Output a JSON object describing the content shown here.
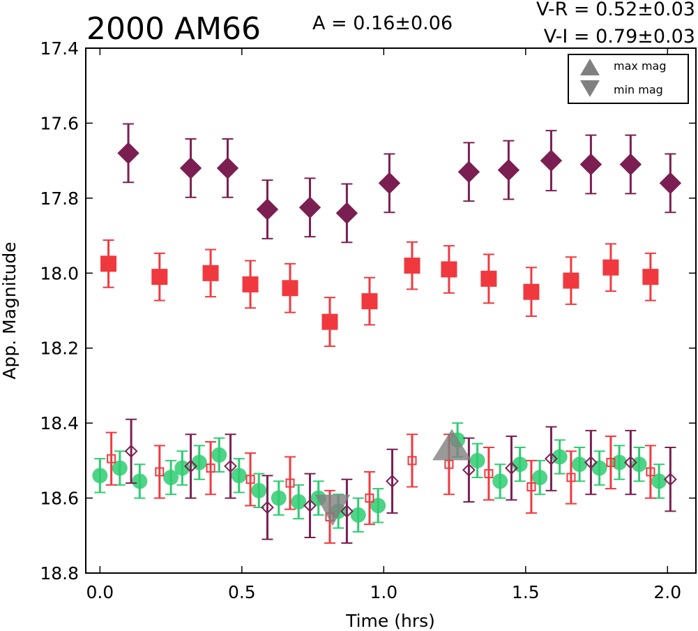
{
  "chart_data": {
    "type": "scatter",
    "title": "2000 AM66",
    "annotations": [
      "A  = 0.16±0.06",
      "V-R = 0.52±0.03",
      "V-I  = 0.79±0.03"
    ],
    "xlabel": "Time (hrs)",
    "ylabel": "App. Magnitude",
    "xlim": [
      -0.05,
      2.1
    ],
    "ylim": [
      18.8,
      17.4
    ],
    "y_inverted": true,
    "grid": false,
    "legend_position": "top-right",
    "x_ticks": [
      0.0,
      0.5,
      1.0,
      1.5,
      2.0
    ],
    "x_tick_labels": [
      "0.0",
      "0.5",
      "1.0",
      "1.5",
      "2.0"
    ],
    "y_ticks": [
      17.4,
      17.6,
      17.8,
      18.0,
      18.2,
      18.4,
      18.6,
      18.8
    ],
    "y_tick_labels": [
      "17.4",
      "17.6",
      "17.8",
      "18.0",
      "18.2",
      "18.4",
      "18.6",
      "18.8"
    ],
    "legend": [
      {
        "label": "max mag",
        "marker": "triangle-up",
        "color": "#808080"
      },
      {
        "label": "min mag",
        "marker": "triangle-down",
        "color": "#808080"
      }
    ],
    "series": [
      {
        "marker": "diamond-filled",
        "color": "#7b1f52",
        "x": [
          0.1,
          0.32,
          0.45,
          0.59,
          0.74,
          0.87,
          1.02,
          1.3,
          1.44,
          1.59,
          1.73,
          1.87,
          2.01
        ],
        "y": [
          17.68,
          17.72,
          17.72,
          17.83,
          17.825,
          17.84,
          17.76,
          17.73,
          17.725,
          17.7,
          17.71,
          17.71,
          17.76
        ],
        "err": [
          0.078,
          0.078,
          0.078,
          0.078,
          0.078,
          0.078,
          0.078,
          0.078,
          0.078,
          0.08,
          0.078,
          0.078,
          0.078
        ]
      },
      {
        "marker": "square-filled",
        "color": "#f0393f",
        "x": [
          0.03,
          0.21,
          0.39,
          0.53,
          0.67,
          0.81,
          0.95,
          1.1,
          1.23,
          1.37,
          1.52,
          1.66,
          1.8,
          1.94
        ],
        "y": [
          17.975,
          18.01,
          18.0,
          18.03,
          18.04,
          18.13,
          18.075,
          17.98,
          17.99,
          18.015,
          18.05,
          18.02,
          17.985,
          18.01
        ],
        "err": [
          0.063,
          0.063,
          0.063,
          0.063,
          0.065,
          0.065,
          0.063,
          0.063,
          0.063,
          0.065,
          0.065,
          0.063,
          0.063,
          0.063
        ]
      },
      {
        "marker": "circle-filled",
        "color": "#2ecc71",
        "x": [
          0.0,
          0.07,
          0.14,
          0.25,
          0.29,
          0.35,
          0.42,
          0.49,
          0.56,
          0.63,
          0.7,
          0.77,
          0.84,
          0.91,
          0.98,
          1.26,
          1.33,
          1.41,
          1.48,
          1.55,
          1.62,
          1.69,
          1.76,
          1.83,
          1.9,
          1.97
        ],
        "y": [
          18.54,
          18.52,
          18.555,
          18.545,
          18.52,
          18.505,
          18.485,
          18.54,
          18.58,
          18.6,
          18.61,
          18.6,
          18.635,
          18.645,
          18.62,
          18.445,
          18.5,
          18.555,
          18.51,
          18.545,
          18.49,
          18.51,
          18.52,
          18.505,
          18.51,
          18.555
        ],
        "err": [
          0.045,
          0.045,
          0.045,
          0.045,
          0.045,
          0.045,
          0.045,
          0.045,
          0.045,
          0.045,
          0.045,
          0.045,
          0.045,
          0.045,
          0.045,
          0.045,
          0.045,
          0.045,
          0.045,
          0.045,
          0.045,
          0.045,
          0.045,
          0.045,
          0.045,
          0.045
        ]
      },
      {
        "marker": "square-open",
        "color": "#f0393f",
        "x": [
          0.04,
          0.21,
          0.39,
          0.53,
          0.67,
          0.81,
          0.95,
          1.1,
          1.23,
          1.37,
          1.52,
          1.66,
          1.8,
          1.94
        ],
        "y": [
          18.495,
          18.53,
          18.52,
          18.55,
          18.56,
          18.65,
          18.6,
          18.5,
          18.51,
          18.535,
          18.57,
          18.545,
          18.505,
          18.53
        ],
        "err": [
          0.07,
          0.07,
          0.07,
          0.07,
          0.07,
          0.07,
          0.07,
          0.07,
          0.08,
          0.07,
          0.07,
          0.07,
          0.07,
          0.07
        ]
      },
      {
        "marker": "diamond-open",
        "color": "#7b1f52",
        "x": [
          0.11,
          0.32,
          0.46,
          0.59,
          0.74,
          0.87,
          1.03,
          1.3,
          1.45,
          1.59,
          1.73,
          1.87,
          2.01
        ],
        "y": [
          18.475,
          18.515,
          18.515,
          18.625,
          18.62,
          18.635,
          18.555,
          18.525,
          18.52,
          18.495,
          18.505,
          18.505,
          18.55
        ],
        "err": [
          0.085,
          0.085,
          0.085,
          0.085,
          0.085,
          0.085,
          0.085,
          0.085,
          0.085,
          0.085,
          0.085,
          0.085,
          0.085
        ]
      },
      {
        "marker": "triangle-up",
        "color": "#808080",
        "x": [
          1.24
        ],
        "y": [
          18.46
        ],
        "err": [
          0
        ]
      },
      {
        "marker": "triangle-down",
        "color": "#808080",
        "x": [
          0.82
        ],
        "y": [
          18.63
        ],
        "err": [
          0
        ]
      }
    ]
  }
}
